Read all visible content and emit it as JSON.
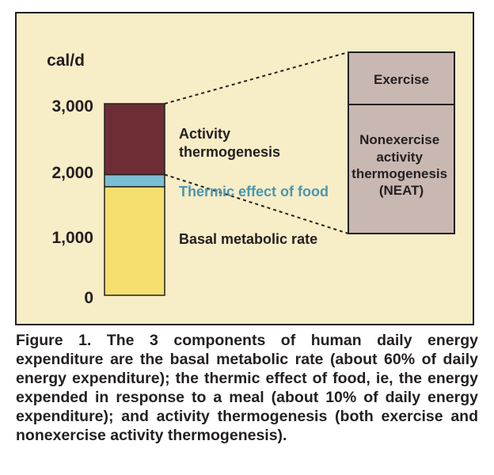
{
  "chart_data": {
    "type": "bar",
    "stacked": true,
    "ylabel": "cal/d",
    "ylim": [
      0,
      3000
    ],
    "yticks": [
      {
        "value": 0,
        "label": "0"
      },
      {
        "value": 1000,
        "label": "1,000"
      },
      {
        "value": 2000,
        "label": "2,000"
      },
      {
        "value": 3000,
        "label": "3,000"
      }
    ],
    "segments": [
      {
        "name": "Basal metabolic rate",
        "from": 0,
        "to": 1700,
        "color": "#f5e06e",
        "label_color": "#231f20"
      },
      {
        "name": "Thermic effect of food",
        "from": 1700,
        "to": 1890,
        "color": "#7cbfd4",
        "label_color": "#4a96b0"
      },
      {
        "name": "Activity thermogenesis",
        "from": 1890,
        "to": 3000,
        "color": "#6e2d35",
        "label_color": "#231f20"
      }
    ],
    "breakdown": {
      "of": "Activity thermogenesis",
      "parts": [
        {
          "name": "Exercise",
          "share": 0.29,
          "color": "#c9b7b2"
        },
        {
          "name": "Nonexercise activity thermogenesis (NEAT)",
          "share": 0.71,
          "color": "#c9b7b2"
        }
      ]
    },
    "background": "#f7edc6",
    "grid": false
  },
  "labels": {
    "activity": [
      "Activity",
      "thermogenesis"
    ],
    "thermic": "Thermic effect of food",
    "basal": "Basal metabolic rate",
    "exercise": "Exercise",
    "neat": [
      "Nonexercise",
      "activity",
      "thermogenesis",
      "(NEAT)"
    ]
  },
  "caption": "Figure 1. The 3 components of human daily energy expenditure are the basal metabolic rate (about 60% of daily energy expenditure); the thermic effect of food, ie, the energy expended in response to a meal (about 10% of daily energy expenditure); and activity thermogenesis (both exercise and nonexercise activity thermogenesis)."
}
